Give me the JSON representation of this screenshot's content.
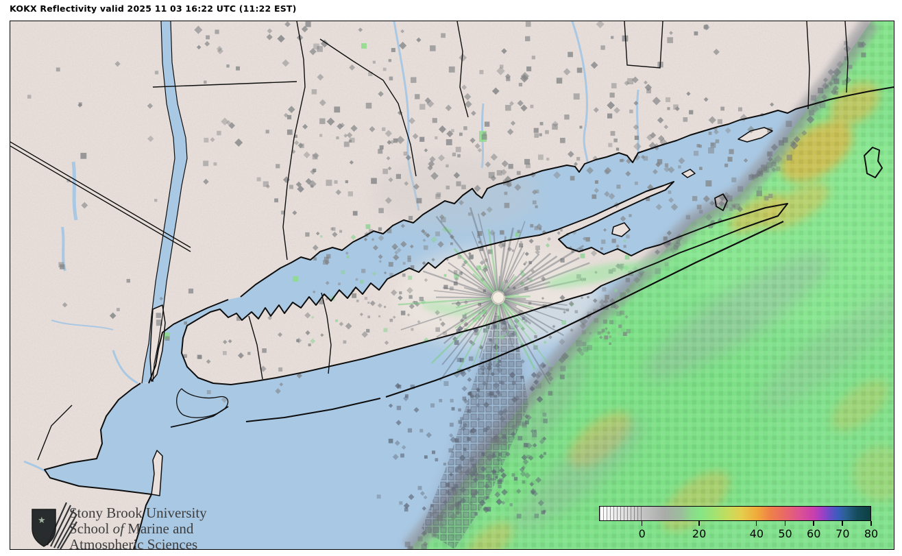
{
  "title": "KOKX Reflectivity valid 2025 11 03 16:22 UTC (11:22 EST)",
  "branding": {
    "line1": "Stony Brook University",
    "line2_pre": "School ",
    "line2_italic": "of",
    "line2_post": " Marine and",
    "line3": "Atmospheric Sciences"
  },
  "colorbar": {
    "ticks": [
      {
        "label": "0",
        "pct": 15.8
      },
      {
        "label": "20",
        "pct": 36.8
      },
      {
        "label": "40",
        "pct": 57.9
      },
      {
        "label": "50",
        "pct": 68.4
      },
      {
        "label": "60",
        "pct": 78.9
      },
      {
        "label": "70",
        "pct": 89.5
      },
      {
        "label": "80",
        "pct": 100
      }
    ],
    "hatch_end_pct": 16,
    "gradient": [
      {
        "pct": 0,
        "color": "#ffffff"
      },
      {
        "pct": 8,
        "color": "#e4e4e4"
      },
      {
        "pct": 16,
        "color": "#c3c3c3"
      },
      {
        "pct": 24,
        "color": "#a9aca9"
      },
      {
        "pct": 30,
        "color": "#9bbd9b"
      },
      {
        "pct": 34,
        "color": "#8dd98c"
      },
      {
        "pct": 37,
        "color": "#85e585"
      },
      {
        "pct": 42,
        "color": "#9fe373"
      },
      {
        "pct": 47,
        "color": "#c2dd5e"
      },
      {
        "pct": 52,
        "color": "#e3cf4e"
      },
      {
        "pct": 58,
        "color": "#f0ab3a"
      },
      {
        "pct": 63,
        "color": "#ef8149"
      },
      {
        "pct": 68,
        "color": "#e96a64"
      },
      {
        "pct": 74,
        "color": "#dc5192"
      },
      {
        "pct": 79,
        "color": "#c93fae"
      },
      {
        "pct": 82,
        "color": "#a23fc4"
      },
      {
        "pct": 85,
        "color": "#6a4cc8"
      },
      {
        "pct": 88,
        "color": "#3a5dbd"
      },
      {
        "pct": 91,
        "color": "#29608f"
      },
      {
        "pct": 95,
        "color": "#154c5c"
      },
      {
        "pct": 100,
        "color": "#0d3f41"
      }
    ]
  },
  "colors": {
    "land": "#e9dfdb",
    "water": "#a9c8e3",
    "echo_green": "#7fe387",
    "echo_orange": "#d9b649",
    "clutter_gray": "#8a8a8a",
    "coast_line": "#0d0d0d",
    "title_text": "#000000",
    "logo_text": "#3d3d3d"
  }
}
